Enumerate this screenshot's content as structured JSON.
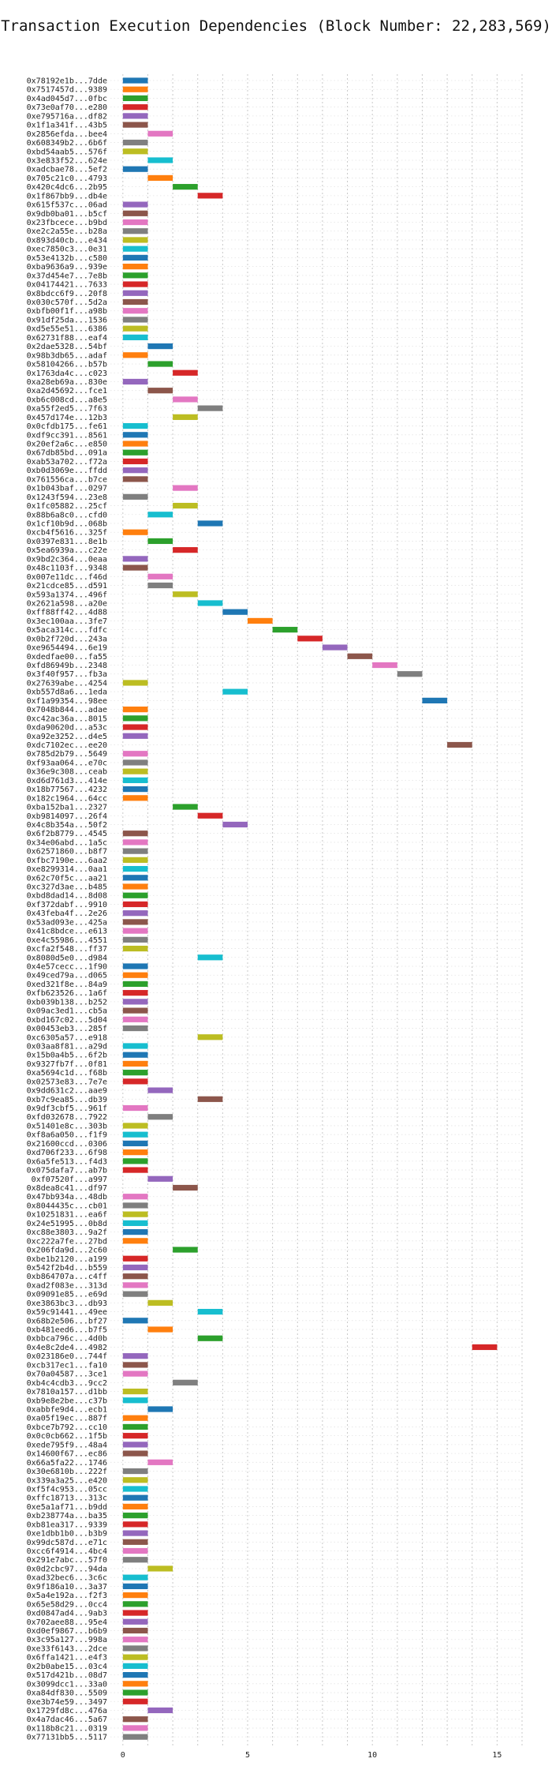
{
  "chart_data": {
    "type": "bar",
    "orientation": "horizontal",
    "title": "Transaction Execution Dependencies (Block Number: 22,283,569)",
    "xlabel": "",
    "ylabel": "",
    "xlim": [
      -0.5,
      16
    ],
    "xticks": [
      0,
      5,
      10,
      15
    ],
    "grid": true,
    "legend": "none",
    "palette": [
      "#1f77b4",
      "#ff7f0e",
      "#2ca02c",
      "#d62728",
      "#9467bd",
      "#8c564b",
      "#e377c2",
      "#7f7f7f",
      "#bcbd22",
      "#17becf"
    ],
    "transactions": [
      {
        "label": "0x78192e1b...7dde",
        "start": 0
      },
      {
        "label": "0x7517457d...9389",
        "start": 0
      },
      {
        "label": "0x4ad045d7...0fbc",
        "start": 0
      },
      {
        "label": "0x73e0af70...e280",
        "start": 0
      },
      {
        "label": "0xe795716a...df82",
        "start": 0
      },
      {
        "label": "0x1f1a341f...43b5",
        "start": 0
      },
      {
        "label": "0x2856efda...bee4",
        "start": 1
      },
      {
        "label": "0x608349b2...6b6f",
        "start": 0
      },
      {
        "label": "0xbd54aab5...576f",
        "start": 0
      },
      {
        "label": "0x3e833f52...624e",
        "start": 1
      },
      {
        "label": "0xadcbae78...5ef2",
        "start": 0
      },
      {
        "label": "0x705c21c0...4793",
        "start": 1
      },
      {
        "label": "0x420c4dc6...2b95",
        "start": 2
      },
      {
        "label": "0x1f867bb9...db4e",
        "start": 3
      },
      {
        "label": "0x615f537c...06ad",
        "start": 0
      },
      {
        "label": "0x9db0ba01...b5cf",
        "start": 0
      },
      {
        "label": "0x23fbcece...b9bd",
        "start": 0
      },
      {
        "label": "0xe2c2a55e...b28a",
        "start": 0
      },
      {
        "label": "0x893d40cb...e434",
        "start": 0
      },
      {
        "label": "0xec7850c3...0e31",
        "start": 0
      },
      {
        "label": "0x53e4132b...c580",
        "start": 0
      },
      {
        "label": "0xba9636a9...939e",
        "start": 0
      },
      {
        "label": "0x37d454e7...7e8b",
        "start": 0
      },
      {
        "label": "0x04174421...7633",
        "start": 0
      },
      {
        "label": "0x8bdcc6f9...20f8",
        "start": 0
      },
      {
        "label": "0x030c570f...5d2a",
        "start": 0
      },
      {
        "label": "0xbfb00f1f...a98b",
        "start": 0
      },
      {
        "label": "0x91df25da...1536",
        "start": 0
      },
      {
        "label": "0xd5e55e51...6386",
        "start": 0
      },
      {
        "label": "0x62731f88...eaf4",
        "start": 0
      },
      {
        "label": "0x2dae5328...54bf",
        "start": 1
      },
      {
        "label": "0x98b3db65...adaf",
        "start": 0
      },
      {
        "label": "0x58104266...b57b",
        "start": 1
      },
      {
        "label": "0x1763da4c...c023",
        "start": 2
      },
      {
        "label": "0xa28eb69a...830e",
        "start": 0
      },
      {
        "label": "0xa2d45692...fce1",
        "start": 1
      },
      {
        "label": "0xb6c008cd...a8e5",
        "start": 2
      },
      {
        "label": "0xa55f2ed5...7f63",
        "start": 3
      },
      {
        "label": "0x457d174e...12b3",
        "start": 2
      },
      {
        "label": "0x0cfdb175...fe61",
        "start": 0
      },
      {
        "label": "0xdf9cc391...8561",
        "start": 0
      },
      {
        "label": "0x20ef2a6c...e850",
        "start": 0
      },
      {
        "label": "0x67db85bd...091a",
        "start": 0
      },
      {
        "label": "0xab53a702...f72a",
        "start": 0
      },
      {
        "label": "0xb0d3069e...ffdd",
        "start": 0
      },
      {
        "label": "0x761556ca...b7ce",
        "start": 0
      },
      {
        "label": "0x1b043baf...0297",
        "start": 2
      },
      {
        "label": "0x1243f594...23e8",
        "start": 0
      },
      {
        "label": "0x1fc05882...25cf",
        "start": 2
      },
      {
        "label": "0x88b6a8c0...cfd0",
        "start": 1
      },
      {
        "label": "0x1cf10b9d...068b",
        "start": 3
      },
      {
        "label": "0xcb4f5616...325f",
        "start": 0
      },
      {
        "label": "0x0397e831...8e1b",
        "start": 1
      },
      {
        "label": "0x5ea6939a...c22e",
        "start": 2
      },
      {
        "label": "0x9bd2c364...0eaa",
        "start": 0
      },
      {
        "label": "0x48c1103f...9348",
        "start": 0
      },
      {
        "label": "0x007e11dc...f46d",
        "start": 1
      },
      {
        "label": "0x21cdce85...d591",
        "start": 1
      },
      {
        "label": "0x593a1374...496f",
        "start": 2
      },
      {
        "label": "0x2621a598...a20e",
        "start": 3
      },
      {
        "label": "0xff88ff42...4d88",
        "start": 4
      },
      {
        "label": "0x3ec100aa...3fe7",
        "start": 5
      },
      {
        "label": "0x5aca314c...fdfc",
        "start": 6
      },
      {
        "label": "0x0b2f720d...243a",
        "start": 7
      },
      {
        "label": "0xe9654494...6e19",
        "start": 8
      },
      {
        "label": "0xdedfae00...fa55",
        "start": 9
      },
      {
        "label": "0xfd86949b...2348",
        "start": 10
      },
      {
        "label": "0x3f40f957...fb3a",
        "start": 11
      },
      {
        "label": "0x27639abe...4254",
        "start": 0
      },
      {
        "label": "0xb557d8a6...1eda",
        "start": 4
      },
      {
        "label": "0xf1a99354...98ee",
        "start": 12
      },
      {
        "label": "0x7048b844...adae",
        "start": 0
      },
      {
        "label": "0xc42ac36a...8015",
        "start": 0
      },
      {
        "label": "0xda90620d...a53c",
        "start": 0
      },
      {
        "label": "0xa92e3252...d4e5",
        "start": 0
      },
      {
        "label": "0xdc7102ec...ee20",
        "start": 13
      },
      {
        "label": "0x785d2b79...5649",
        "start": 0
      },
      {
        "label": "0xf93aa064...e70c",
        "start": 0
      },
      {
        "label": "0x36e9c308...ceab",
        "start": 0
      },
      {
        "label": "0xd6d761d3...414e",
        "start": 0
      },
      {
        "label": "0x18b77567...4232",
        "start": 0
      },
      {
        "label": "0x182c1964...64cc",
        "start": 0
      },
      {
        "label": "0xba152ba1...2327",
        "start": 2
      },
      {
        "label": "0xb9814097...26f4",
        "start": 3
      },
      {
        "label": "0x4c8b354a...50f2",
        "start": 4
      },
      {
        "label": "0x6f2b8779...4545",
        "start": 0
      },
      {
        "label": "0x34e06abd...1a5c",
        "start": 0
      },
      {
        "label": "0x62571860...b8f7",
        "start": 0
      },
      {
        "label": "0xfbc7190e...6aa2",
        "start": 0
      },
      {
        "label": "0xe8299314...0aa1",
        "start": 0
      },
      {
        "label": "0x62c70f5c...aa21",
        "start": 0
      },
      {
        "label": "0xc327d3ae...b485",
        "start": 0
      },
      {
        "label": "0xbd8dad14...8d08",
        "start": 0
      },
      {
        "label": "0xf372dabf...9910",
        "start": 0
      },
      {
        "label": "0x43feba4f...2e26",
        "start": 0
      },
      {
        "label": "0x53ad093e...425a",
        "start": 0
      },
      {
        "label": "0x41c8bdce...e613",
        "start": 0
      },
      {
        "label": "0xe4c55986...4551",
        "start": 0
      },
      {
        "label": "0xcfa2f548...ff37",
        "start": 0
      },
      {
        "label": "0x8080d5e0...d984",
        "start": 3
      },
      {
        "label": "0x4e57cecc...1f90",
        "start": 0
      },
      {
        "label": "0x49ced79a...d065",
        "start": 0
      },
      {
        "label": "0xed321f8e...84a9",
        "start": 0
      },
      {
        "label": "0xfb623526...1a6f",
        "start": 0
      },
      {
        "label": "0xb039b138...b252",
        "start": 0
      },
      {
        "label": "0x09ac3ed1...cb5a",
        "start": 0
      },
      {
        "label": "0xbd167c02...5d04",
        "start": 0
      },
      {
        "label": "0x00453eb3...285f",
        "start": 0
      },
      {
        "label": "0xc6305a57...e918",
        "start": 3
      },
      {
        "label": "0x03aa8f81...a29d",
        "start": 0
      },
      {
        "label": "0x15b0a4b5...6f2b",
        "start": 0
      },
      {
        "label": "0x9327fb7f...0f81",
        "start": 0
      },
      {
        "label": "0xa5694c1d...f68b",
        "start": 0
      },
      {
        "label": "0x02573e83...7e7e",
        "start": 0
      },
      {
        "label": "0x9dd631c2...aae9",
        "start": 1
      },
      {
        "label": "0xb7c9ea85...db39",
        "start": 3
      },
      {
        "label": "0x9df3cbf5...961f",
        "start": 0
      },
      {
        "label": "0xfd032678...7922",
        "start": 1
      },
      {
        "label": "0x51401e8c...303b",
        "start": 0
      },
      {
        "label": "0xf8a6a050...f1f9",
        "start": 0
      },
      {
        "label": "0x21600ccd...0306",
        "start": 0
      },
      {
        "label": "0xd706f233...6f98",
        "start": 0
      },
      {
        "label": "0x6a5fe513...f4d3",
        "start": 0
      },
      {
        "label": "0x075dafa7...ab7b",
        "start": 0
      },
      {
        "label": "0xf07520f...a997",
        "start": 1
      },
      {
        "label": "0x8dea8c41...df97",
        "start": 2
      },
      {
        "label": "0x47bb934a...48db",
        "start": 0
      },
      {
        "label": "0x8044435c...cb01",
        "start": 0
      },
      {
        "label": "0x10251831...ea6f",
        "start": 0
      },
      {
        "label": "0x24e51995...0b8d",
        "start": 0
      },
      {
        "label": "0xc88e3803...9a2f",
        "start": 0
      },
      {
        "label": "0xc222a7fe...27bd",
        "start": 0
      },
      {
        "label": "0x206fda9d...2c60",
        "start": 2
      },
      {
        "label": "0xbe1b2120...a199",
        "start": 0
      },
      {
        "label": "0x542f2b4d...b559",
        "start": 0
      },
      {
        "label": "0xb864707a...c4ff",
        "start": 0
      },
      {
        "label": "0xad2f083e...313d",
        "start": 0
      },
      {
        "label": "0x09091e85...e69d",
        "start": 0
      },
      {
        "label": "0xe3863bc3...db93",
        "start": 1
      },
      {
        "label": "0x59c91441...49ee",
        "start": 3
      },
      {
        "label": "0x68b2e506...bf27",
        "start": 0
      },
      {
        "label": "0xb481eed6...b7f5",
        "start": 1
      },
      {
        "label": "0xbbca796c...4d0b",
        "start": 3
      },
      {
        "label": "0x4e8c2de4...4982",
        "start": 14
      },
      {
        "label": "0x023186e0...744f",
        "start": 0
      },
      {
        "label": "0xcb317ec1...fa10",
        "start": 0
      },
      {
        "label": "0x70a04587...3ce1",
        "start": 0
      },
      {
        "label": "0xb4c4cdb3...9cc2",
        "start": 2
      },
      {
        "label": "0x7810a157...d1bb",
        "start": 0
      },
      {
        "label": "0xb9e8e2be...c37b",
        "start": 0
      },
      {
        "label": "0xabbfe9d4...ecb1",
        "start": 1
      },
      {
        "label": "0xa05f19ec...887f",
        "start": 0
      },
      {
        "label": "0xbce7b792...cc10",
        "start": 0
      },
      {
        "label": "0x0c0cb662...1f5b",
        "start": 0
      },
      {
        "label": "0xede795f9...48a4",
        "start": 0
      },
      {
        "label": "0x14600f67...ec86",
        "start": 0
      },
      {
        "label": "0x66a5fa22...1746",
        "start": 1
      },
      {
        "label": "0x30e6810b...222f",
        "start": 0
      },
      {
        "label": "0x339a3a25...e420",
        "start": 0
      },
      {
        "label": "0xf5f4c953...05cc",
        "start": 0
      },
      {
        "label": "0xffc18713...313c",
        "start": 0
      },
      {
        "label": "0xe5a1af71...b9dd",
        "start": 0
      },
      {
        "label": "0xb238774a...ba35",
        "start": 0
      },
      {
        "label": "0xb81ea317...9339",
        "start": 0
      },
      {
        "label": "0xe1dbb1b0...b3b9",
        "start": 0
      },
      {
        "label": "0x99dc587d...e71c",
        "start": 0
      },
      {
        "label": "0xcc6f4914...4bc4",
        "start": 0
      },
      {
        "label": "0x291e7abc...57f0",
        "start": 0
      },
      {
        "label": "0x0d2cbc97...94da",
        "start": 1
      },
      {
        "label": "0xad32bec6...3c6c",
        "start": 0
      },
      {
        "label": "0x9f186a10...3a37",
        "start": 0
      },
      {
        "label": "0x5a4e192a...f2f3",
        "start": 0
      },
      {
        "label": "0x65e58d29...0cc4",
        "start": 0
      },
      {
        "label": "0xd0847ad4...9ab3",
        "start": 0
      },
      {
        "label": "0x702aee88...95e4",
        "start": 0
      },
      {
        "label": "0xd0ef9867...b6b9",
        "start": 0
      },
      {
        "label": "0x3c95a127...998a",
        "start": 0
      },
      {
        "label": "0xe33f6143...2dce",
        "start": 0
      },
      {
        "label": "0x6ffa1421...e4f3",
        "start": 0
      },
      {
        "label": "0x2b0abe15...03c4",
        "start": 0
      },
      {
        "label": "0x517d421b...08d7",
        "start": 0
      },
      {
        "label": "0x3099dcc1...33a0",
        "start": 0
      },
      {
        "label": "0xa84df830...5509",
        "start": 0
      },
      {
        "label": "0xe3b74e59...3497",
        "start": 0
      },
      {
        "label": "0x1729fd8c...476a",
        "start": 1
      },
      {
        "label": "0x4a7dac46...5a67",
        "start": 0
      },
      {
        "label": "0x118b8c21...0319",
        "start": 0
      },
      {
        "label": "0x77131bb5...5117",
        "start": 0
      }
    ]
  }
}
